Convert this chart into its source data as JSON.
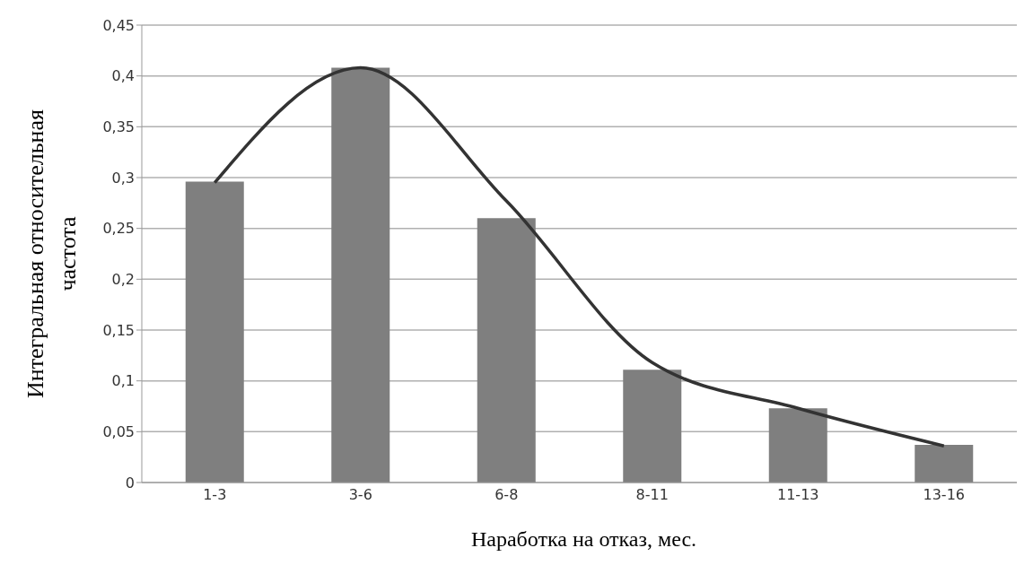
{
  "chart_data": {
    "type": "bar",
    "categories": [
      "1-3",
      "3-6",
      "6-8",
      "8-11",
      "11-13",
      "13-16"
    ],
    "series": [
      {
        "color": "#7f7f7f",
        "values": [
          0.296,
          0.408,
          0.26,
          0.111,
          0.073,
          0.037
        ]
      },
      {
        "type": "line",
        "color": "#333333",
        "values": [
          0.295,
          0.408,
          0.277,
          0.118,
          0.073,
          0.036
        ]
      }
    ],
    "ylim": [
      0,
      0.45
    ],
    "yticks": [
      {
        "value": 0,
        "label": "0"
      },
      {
        "value": 0.05,
        "label": "0,05"
      },
      {
        "value": 0.1,
        "label": "0,1"
      },
      {
        "value": 0.15,
        "label": "0,15"
      },
      {
        "value": 0.2,
        "label": "0,2"
      },
      {
        "value": 0.25,
        "label": "0,25"
      },
      {
        "value": 0.3,
        "label": "0,3"
      },
      {
        "value": 0.35,
        "label": "0,35"
      },
      {
        "value": 0.4,
        "label": "0,4"
      },
      {
        "value": 0.45,
        "label": "0,45"
      }
    ],
    "xlabel": "Наработка на отказ, мес.",
    "ylabel": "Интегральная относительная частота",
    "grid": "y"
  }
}
